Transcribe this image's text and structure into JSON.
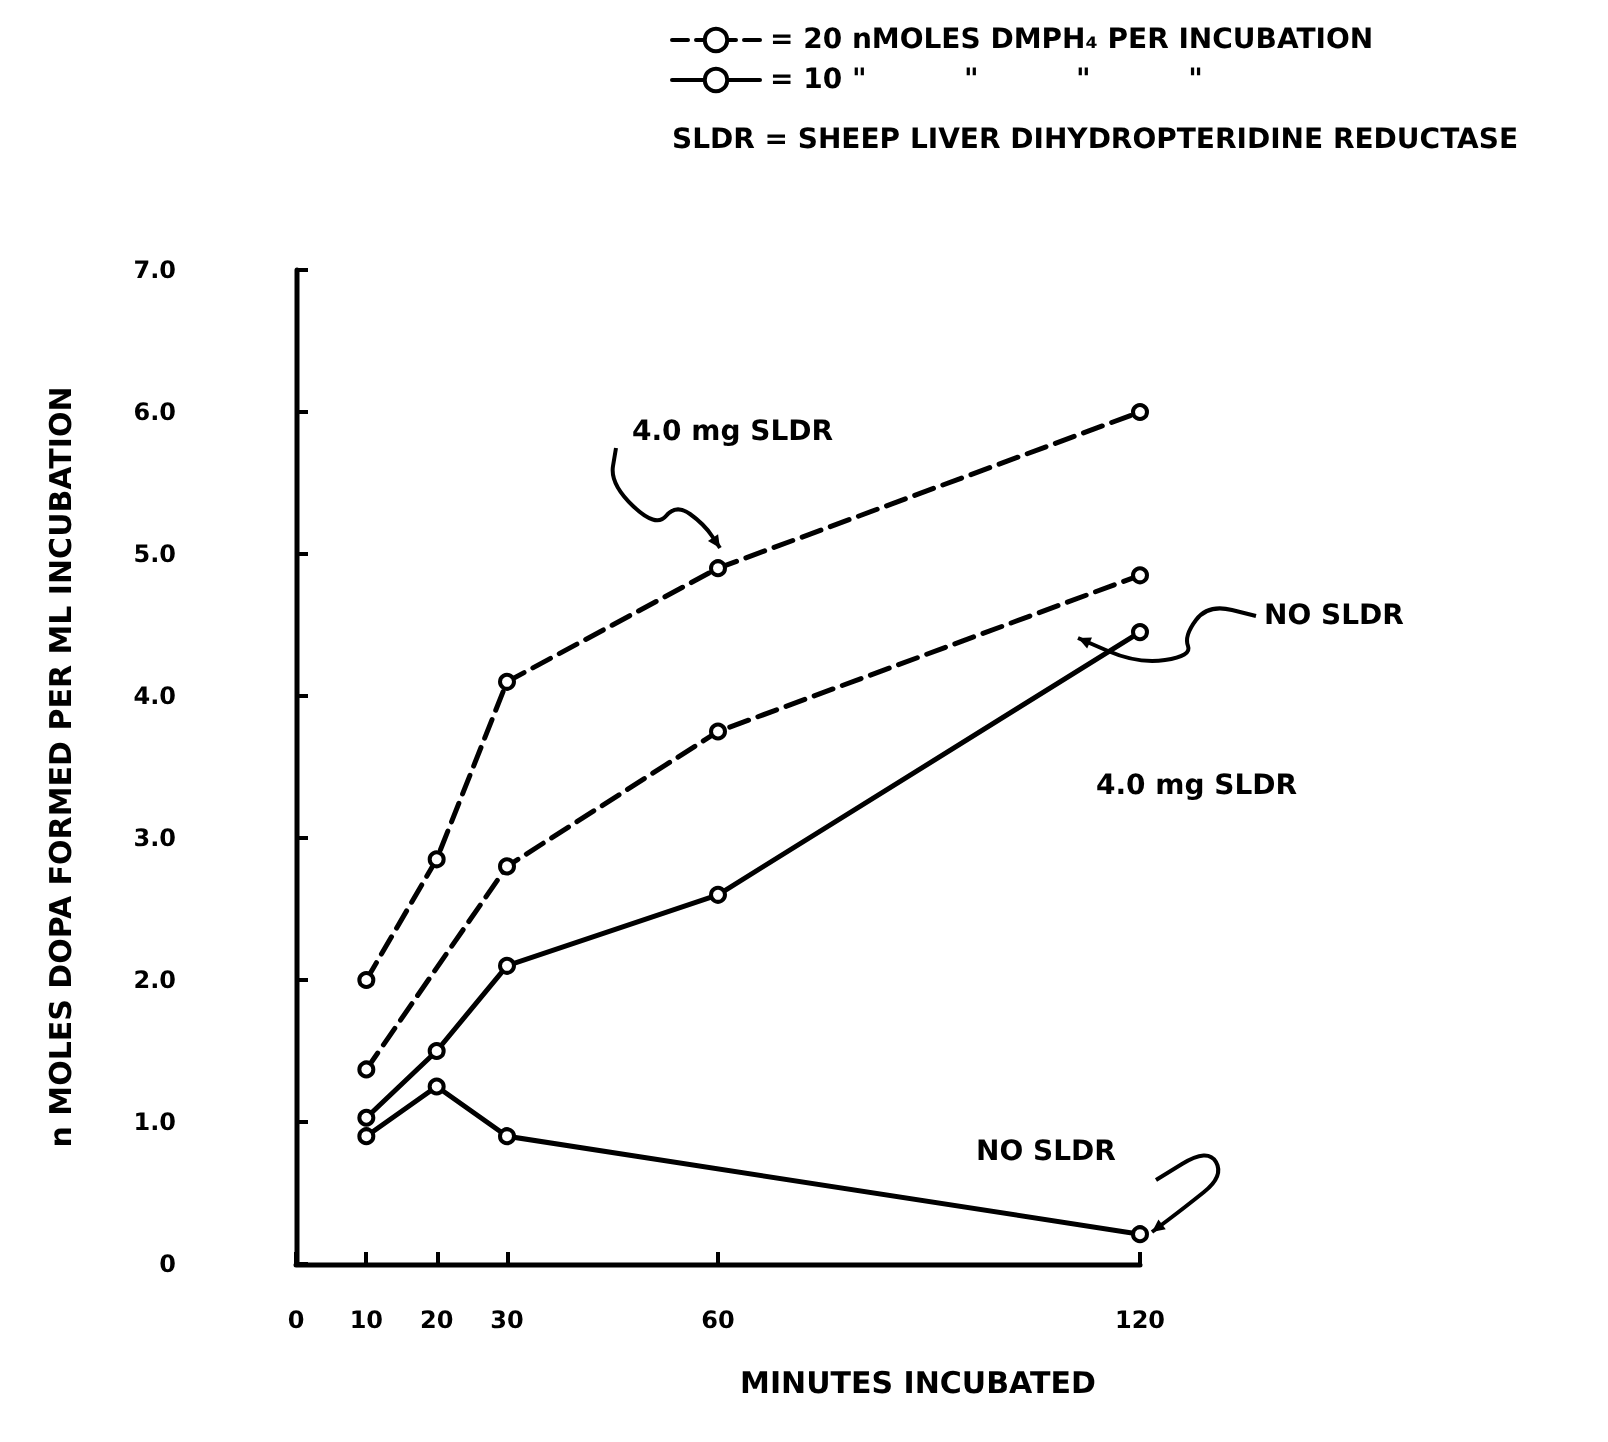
{
  "chart_data": {
    "type": "line",
    "xlabel": "MINUTES INCUBATED",
    "ylabel": "n MOLES DOPA FORMED PER ML INCUBATION",
    "xlim": [
      0,
      120
    ],
    "xticks": [
      0,
      10,
      20,
      30,
      60,
      120
    ],
    "ylim": [
      0,
      7
    ],
    "yticks": [
      0,
      {
        "value": 1,
        "label": "1.0"
      },
      {
        "value": 2,
        "label": "2.0"
      },
      {
        "value": 3,
        "label": "3.0"
      },
      {
        "value": 4,
        "label": "4.0"
      },
      {
        "value": 5,
        "label": "5.0"
      },
      {
        "value": 6,
        "label": "6.0"
      },
      {
        "value": 7,
        "label": "7.0"
      }
    ],
    "grid": false,
    "legend": "top",
    "marker": "circle",
    "series": [
      {
        "name": "= 20 nMOLES DMPH₄ PER INCUBATION",
        "color": "#000000",
        "line_style": "dashed",
        "x": [
          10,
          20,
          30,
          60,
          120
        ],
        "values": [
          2.0,
          2.85,
          4.1,
          4.9,
          6.0
        ]
      },
      {
        "color": "#000000",
        "line_style": "dashed",
        "x": [
          10,
          30,
          60,
          120
        ],
        "values": [
          1.37,
          2.8,
          3.75,
          4.85
        ]
      },
      {
        "name": "= 10 \"          \"          \"          \"",
        "color": "#000000",
        "line_style": "solid",
        "x": [
          10,
          20,
          30,
          60,
          120
        ],
        "values": [
          1.03,
          1.5,
          2.1,
          2.6,
          4.45
        ]
      },
      {
        "color": "#000000",
        "line_style": "solid",
        "x": [
          10,
          20,
          30,
          120
        ],
        "values": [
          0.9,
          1.25,
          0.9,
          0.21
        ]
      }
    ],
    "annotations": [
      "SLDR = SHEEP LIVER DIHYDROPTERIDINE REDUCTASE",
      "4.0 mg SLDR",
      "NO SLDR",
      "4.0 mg SLDR",
      "NO SLDR"
    ]
  }
}
